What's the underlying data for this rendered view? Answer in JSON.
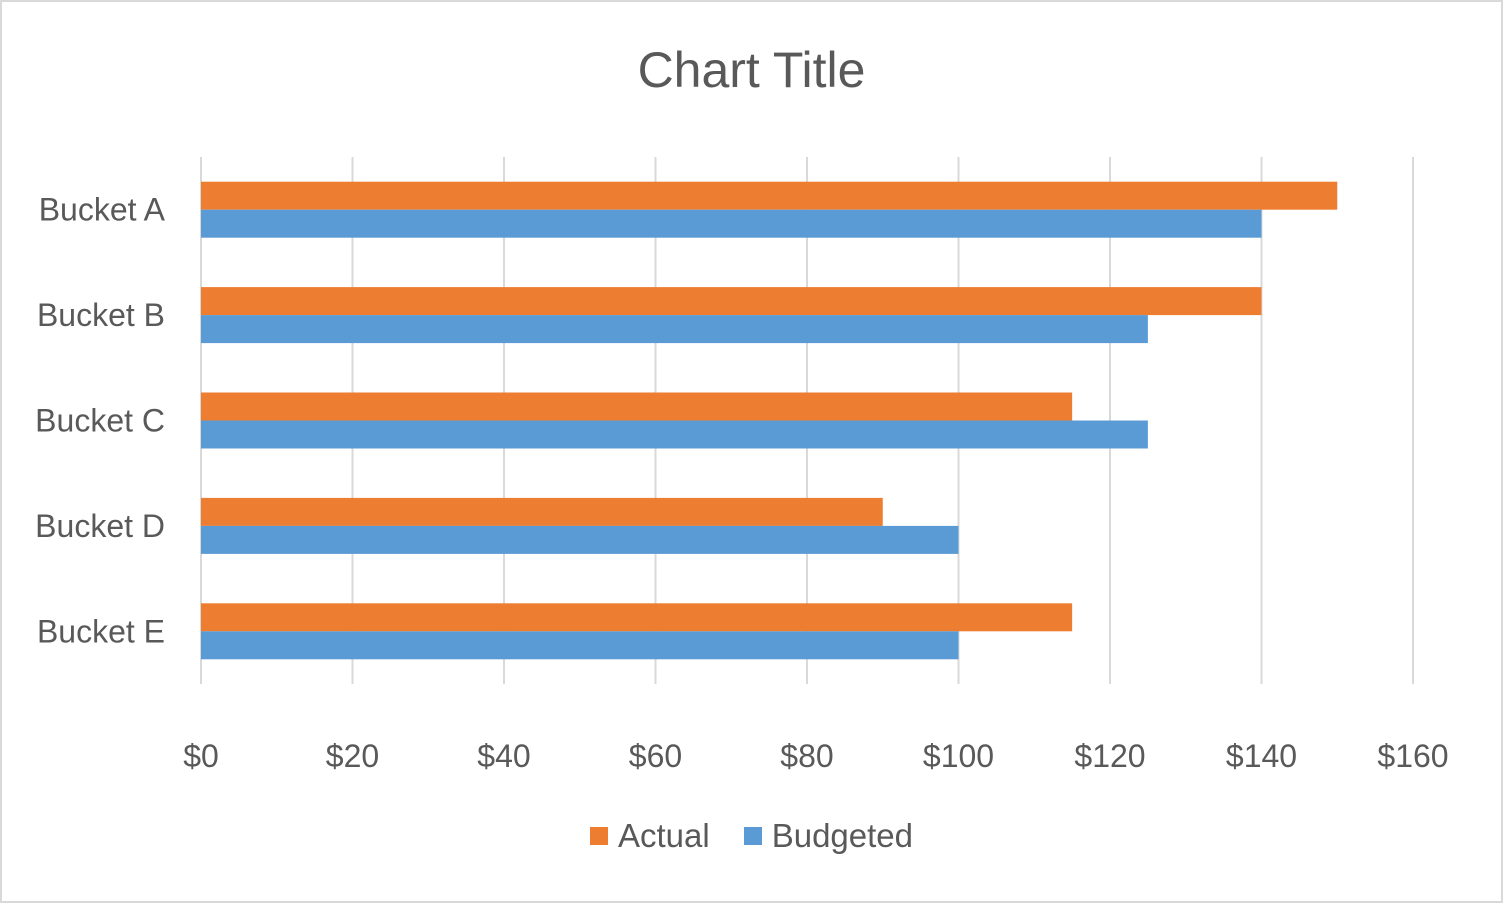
{
  "chart_data": {
    "type": "bar",
    "orientation": "horizontal",
    "title": "Chart Title",
    "categories": [
      "Bucket A",
      "Bucket B",
      "Bucket C",
      "Bucket D",
      "Bucket E"
    ],
    "series": [
      {
        "name": "Actual",
        "color": "#ed7d31",
        "values": [
          150,
          140,
          115,
          90,
          115
        ]
      },
      {
        "name": "Budgeted",
        "color": "#5b9bd5",
        "values": [
          140,
          125,
          125,
          100,
          100
        ]
      }
    ],
    "xlim": [
      0,
      160
    ],
    "x_ticks": [
      0,
      20,
      40,
      60,
      80,
      100,
      120,
      140,
      160
    ],
    "x_tick_labels": [
      "$0",
      "$20",
      "$40",
      "$60",
      "$80",
      "$100",
      "$120",
      "$140",
      "$160"
    ],
    "grid": "vertical",
    "legend_position": "bottom"
  }
}
